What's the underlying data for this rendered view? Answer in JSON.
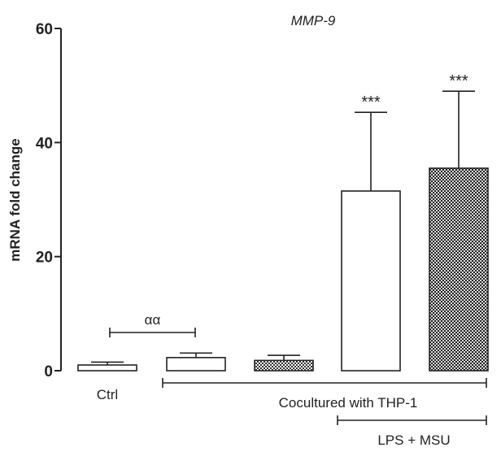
{
  "chart_data": {
    "type": "bar",
    "title": "MMP-9",
    "ylabel": "mRNA fold change",
    "xlabel": "",
    "ylim": [
      0,
      60
    ],
    "yticks": [
      0,
      20,
      40,
      60
    ],
    "grid": false,
    "values": [
      1.0,
      2.3,
      1.8,
      31.5,
      35.5
    ],
    "errors": [
      0.5,
      0.8,
      0.9,
      13.8,
      13.5
    ],
    "fills": [
      "white",
      "white",
      "checker",
      "white",
      "checker-dense"
    ],
    "bar_annotations": [
      "",
      "",
      "",
      "***",
      "***"
    ],
    "category_labels": [
      {
        "text": "Ctrl",
        "bars": [
          0
        ]
      }
    ],
    "group_brackets": [
      {
        "text": "αα",
        "from_bar": 0,
        "to_bar": 1,
        "position": "above"
      },
      {
        "text": "Cocultured with THP-1",
        "from_bar": 1,
        "to_bar": 4,
        "position": "below"
      },
      {
        "text": "LPS + MSU",
        "from_bar": 3,
        "to_bar": 4,
        "position": "below"
      }
    ]
  }
}
